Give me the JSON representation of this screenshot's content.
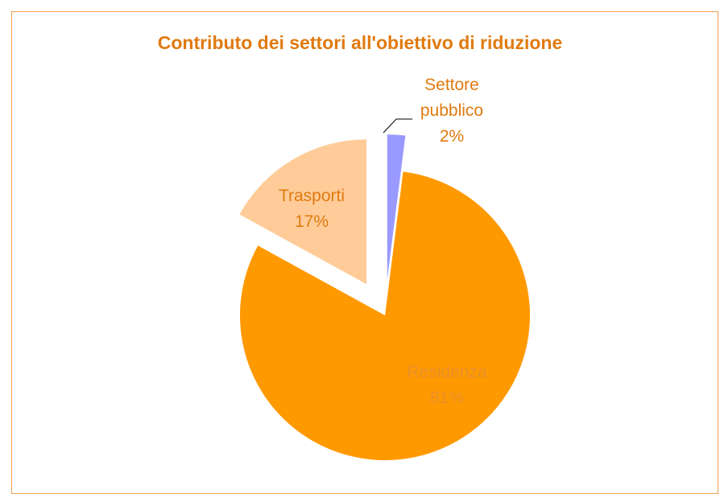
{
  "chart_data": {
    "type": "pie",
    "title": "Contributo dei settori all'obiettivo di riduzione",
    "categories": [
      "Settore pubblico",
      "Residenza",
      "Trasporti"
    ],
    "values": [
      2,
      81,
      17
    ],
    "value_labels": [
      "2%",
      "81%",
      "17%"
    ],
    "colors": [
      "#9999ff",
      "#ff9900",
      "#ffcc99"
    ]
  }
}
